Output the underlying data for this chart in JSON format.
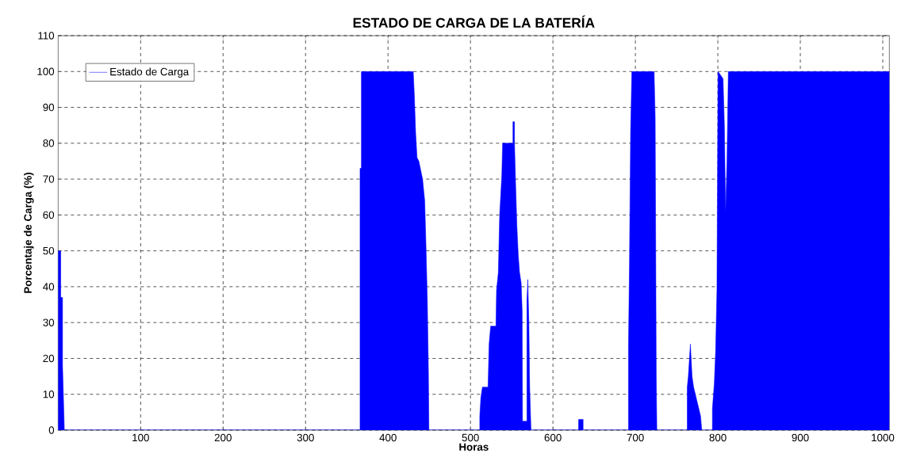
{
  "chart_data": {
    "type": "area",
    "title": "ESTADO DE CARGA DE LA BATERÍA",
    "xlabel": "Horas",
    "ylabel": "Porcentaje de Carga (%)",
    "x": [
      0,
      3.1,
      3.1,
      5.3,
      5.3,
      7.5,
      366.1,
      366.1,
      367.7,
      367.7,
      430.6,
      432.0,
      433.5,
      435.2,
      437.4,
      441.9,
      444.5,
      446.1,
      447.7,
      449.0,
      449.6,
      511.3,
      511.3,
      512.6,
      514.5,
      521.3,
      522.6,
      524.5,
      530.9,
      531.6,
      533.8,
      535.4,
      538.0,
      539.0,
      551.5,
      551.5,
      553.4,
      553.4,
      554.7,
      556.3,
      557.9,
      559.5,
      561.5,
      562.7,
      563.1,
      568.5,
      568.5,
      569.5,
      570.8,
      571.8,
      573.4,
      631.1,
      631.1,
      636.6,
      636.6,
      691.6,
      691.6,
      692.8,
      694.2,
      695.7,
      722.7,
      724.0,
      725.3,
      726.0,
      762.9,
      762.9,
      764.2,
      766.7,
      768.7,
      770.6,
      779.0,
      780.5,
      793.4,
      793.4,
      795.7,
      797.3,
      798.9,
      800.2,
      806.3,
      807.9,
      809.4,
      811.1,
      812.7,
      1008
    ],
    "series": [
      {
        "name": "Estado de Carga",
        "color": "#0000ff",
        "values": [
          50,
          50,
          37,
          37,
          18,
          0,
          0,
          73,
          73,
          100,
          100,
          93,
          83,
          76,
          75,
          70,
          64,
          51,
          36,
          16,
          0,
          0,
          4,
          9,
          12,
          12,
          24,
          29,
          29,
          39,
          44,
          60,
          71,
          80,
          80,
          86,
          86,
          80,
          69,
          57,
          49,
          44,
          41,
          33,
          2.5,
          2.5,
          36,
          42,
          30,
          12,
          0,
          0,
          3,
          3,
          0,
          0,
          23,
          46,
          83,
          100,
          100,
          87,
          15,
          0,
          0,
          12,
          15,
          24,
          15,
          12,
          4,
          0,
          0,
          6,
          13,
          22,
          39,
          100,
          98,
          85,
          61,
          75,
          100,
          100
        ]
      }
    ],
    "xlim": [
      0,
      1008
    ],
    "ylim": [
      0,
      110
    ],
    "xticks": [
      100,
      200,
      300,
      400,
      500,
      600,
      700,
      800,
      900,
      1000
    ],
    "yticks": [
      0,
      10,
      20,
      30,
      40,
      50,
      60,
      70,
      80,
      90,
      100,
      110
    ],
    "grid": true,
    "legend": "top left"
  }
}
